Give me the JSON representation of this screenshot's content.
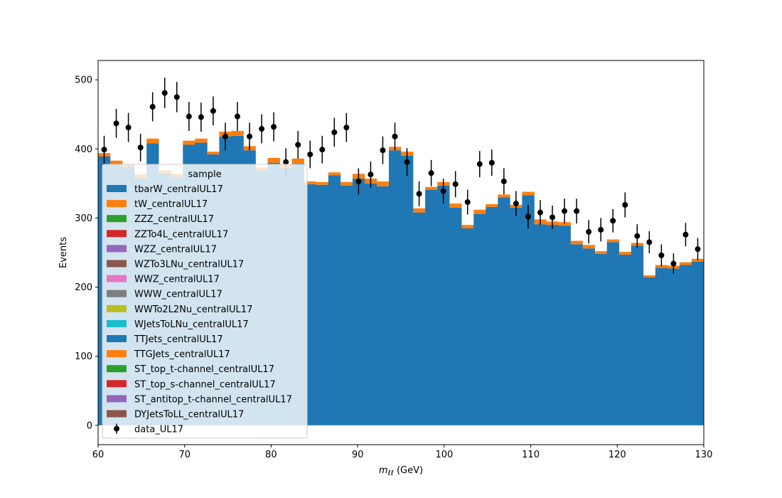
{
  "chart_data": {
    "type": "bar",
    "xlabel": "m_ℓℓ (GeV)",
    "xlabel_main": "m",
    "xlabel_sub": "ℓℓ",
    "xlabel_unit": " (GeV)",
    "ylabel": "Events",
    "xlim": [
      60,
      130
    ],
    "ylim": [
      -28,
      528
    ],
    "x_ticks": [
      60,
      70,
      80,
      90,
      100,
      110,
      120,
      130
    ],
    "y_ticks": [
      0,
      100,
      200,
      300,
      400,
      500
    ],
    "grid": false,
    "legend_title": "sample",
    "legend_position": "center-left",
    "bin_edges": [
      60.0,
      61.4,
      62.8,
      64.2,
      65.6,
      67.0,
      68.4,
      69.8,
      71.2,
      72.6,
      74.0,
      75.4,
      76.8,
      78.2,
      79.6,
      81.0,
      82.4,
      83.8,
      85.2,
      86.6,
      88.0,
      89.4,
      90.8,
      92.2,
      93.6,
      95.0,
      96.4,
      97.8,
      99.2,
      100.6,
      102.0,
      103.4,
      104.8,
      106.2,
      107.6,
      109.0,
      110.4,
      111.8,
      113.2,
      114.6,
      116.0,
      117.4,
      118.8,
      120.2,
      121.6,
      123.0,
      124.4,
      125.8,
      127.2,
      128.6,
      130.0
    ],
    "series": [
      {
        "name": "tbarW_centralUL17",
        "color": "#1f77b4",
        "values": [
          389,
          378,
          374,
          358,
          408,
          365,
          360,
          406,
          409,
          392,
          418,
          419,
          398,
          369,
          380,
          372,
          379,
          349,
          348,
          362,
          347,
          357,
          350,
          346,
          398,
          390,
          308,
          341,
          347,
          315,
          285,
          306,
          316,
          330,
          315,
          333,
          291,
          290,
          289,
          262,
          256,
          248,
          265,
          247,
          260,
          214,
          228,
          227,
          232,
          237
        ]
      },
      {
        "name": "tW_centralUL17",
        "color": "#ff7f0e",
        "values": [
          5,
          5,
          4,
          5,
          7,
          4,
          4,
          6,
          6,
          4,
          7,
          7,
          6,
          4,
          7,
          5,
          7,
          4,
          4,
          4,
          5,
          7,
          7,
          7,
          5,
          6,
          6,
          4,
          5,
          6,
          5,
          6,
          4,
          4,
          4,
          5,
          7,
          5,
          5,
          5,
          5,
          4,
          4,
          4,
          4,
          3,
          4,
          4,
          4,
          4
        ]
      },
      {
        "name": "ZZZ_centralUL17",
        "color": "#2ca02c",
        "values": [
          0
        ]
      },
      {
        "name": "ZZTo4L_centralUL17",
        "color": "#d62728",
        "values": [
          0
        ]
      },
      {
        "name": "WZZ_centralUL17",
        "color": "#9467bd",
        "values": [
          0
        ]
      },
      {
        "name": "WZTo3LNu_centralUL17",
        "color": "#8c564b",
        "values": [
          0
        ]
      },
      {
        "name": "WWZ_centralUL17",
        "color": "#e377c2",
        "values": [
          0
        ]
      },
      {
        "name": "WWW_centralUL17",
        "color": "#7f7f7f",
        "values": [
          0
        ]
      },
      {
        "name": "WWTo2L2Nu_centralUL17",
        "color": "#bcbd22",
        "values": [
          0
        ]
      },
      {
        "name": "WJetsToLNu_centralUL17",
        "color": "#17becf",
        "values": [
          0
        ]
      },
      {
        "name": "TTJets_centralUL17",
        "color": "#1f77b4",
        "values": [
          0
        ]
      },
      {
        "name": "TTGJets_centralUL17",
        "color": "#ff7f0e",
        "values": [
          0
        ]
      },
      {
        "name": "ST_top_t-channel_centralUL17",
        "color": "#2ca02c",
        "values": [
          0
        ]
      },
      {
        "name": "ST_top_s-channel_centralUL17",
        "color": "#d62728",
        "values": [
          0
        ]
      },
      {
        "name": "ST_antitop_t-channel_centralUL17",
        "color": "#9467bd",
        "values": [
          0
        ]
      },
      {
        "name": "DYJetsToLL_centralUL17",
        "color": "#8c564b",
        "values": [
          0
        ]
      }
    ],
    "data": {
      "name": "data_UL17",
      "color": "#000000",
      "x": [
        60.7,
        62.1,
        63.5,
        64.9,
        66.3,
        67.7,
        69.1,
        70.5,
        71.9,
        73.3,
        74.7,
        76.1,
        77.5,
        78.9,
        80.3,
        81.7,
        83.1,
        84.5,
        85.9,
        87.3,
        88.7,
        90.1,
        91.5,
        92.9,
        94.3,
        95.7,
        97.1,
        98.5,
        99.9,
        101.3,
        102.7,
        104.1,
        105.5,
        106.9,
        108.3,
        109.7,
        111.1,
        112.5,
        113.9,
        115.3,
        116.7,
        118.1,
        119.5,
        120.9,
        122.3,
        123.7,
        125.1,
        126.5,
        127.9,
        129.3
      ],
      "y": [
        399,
        437,
        431,
        402,
        461,
        481,
        475,
        447,
        446,
        455,
        418,
        447,
        418,
        429,
        432,
        381,
        406,
        392,
        399,
        424,
        431,
        353,
        363,
        398,
        418,
        381,
        335,
        365,
        339,
        349,
        323,
        378,
        380,
        353,
        321,
        302,
        308,
        301,
        310,
        310,
        280,
        283,
        296,
        319,
        274,
        265,
        246,
        234,
        276,
        255
      ],
      "yerr": [
        20,
        21,
        21,
        20,
        21,
        22,
        22,
        21,
        21,
        21,
        20,
        21,
        20,
        21,
        21,
        20,
        20,
        20,
        20,
        21,
        21,
        19,
        19,
        20,
        20,
        20,
        18,
        19,
        18,
        19,
        18,
        19,
        19,
        19,
        18,
        17,
        18,
        17,
        18,
        18,
        17,
        17,
        17,
        18,
        17,
        16,
        16,
        15,
        17,
        16
      ]
    }
  }
}
